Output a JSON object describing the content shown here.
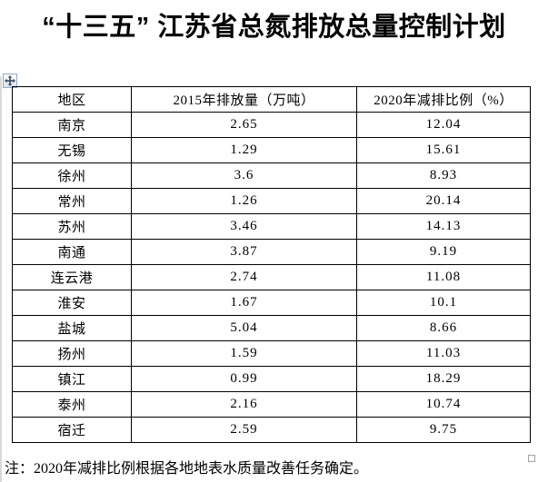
{
  "page": {
    "title": "“十三五” 江苏省总氮排放总量控制计划",
    "note": "注：2020年减排比例根据各地地表水质量改善任务确定。"
  },
  "table": {
    "columns": [
      "地区",
      "2015年排放量（万吨）",
      "2020年减排比例（%）"
    ],
    "rows": [
      {
        "region": "南京",
        "emission": "2.65",
        "reduction": "12.04"
      },
      {
        "region": "无锡",
        "emission": "1.29",
        "reduction": "15.61"
      },
      {
        "region": "徐州",
        "emission": "3.6",
        "reduction": "8.93"
      },
      {
        "region": "常州",
        "emission": "1.26",
        "reduction": "20.14"
      },
      {
        "region": "苏州",
        "emission": "3.46",
        "reduction": "14.13"
      },
      {
        "region": "南通",
        "emission": "3.87",
        "reduction": "9.19"
      },
      {
        "region": "连云港",
        "emission": "2.74",
        "reduction": "11.08"
      },
      {
        "region": "淮安",
        "emission": "1.67",
        "reduction": "10.1"
      },
      {
        "region": "盐城",
        "emission": "5.04",
        "reduction": "8.66"
      },
      {
        "region": "扬州",
        "emission": "1.59",
        "reduction": "11.03"
      },
      {
        "region": "镇江",
        "emission": "0.99",
        "reduction": "18.29"
      },
      {
        "region": "泰州",
        "emission": "2.16",
        "reduction": "10.74"
      },
      {
        "region": "宿迁",
        "emission": "2.59",
        "reduction": "9.75"
      }
    ]
  },
  "icons": {
    "move_handle": "table-move-handle",
    "resize_handle": "table-resize-handle"
  },
  "colors": {
    "border": "#000000",
    "handle_border": "#97a9c3",
    "handle_arrow": "#44546a",
    "text": "#000000",
    "background": "#ffffff"
  }
}
